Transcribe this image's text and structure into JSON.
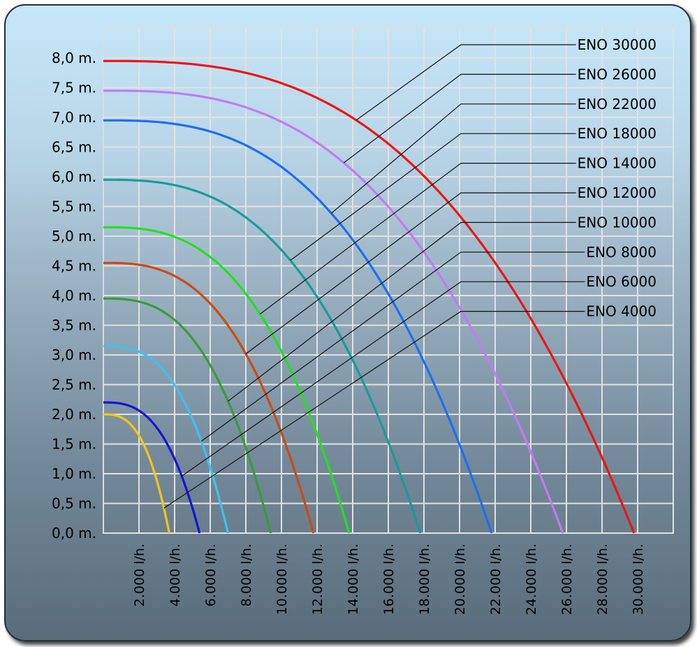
{
  "chart_data": {
    "type": "line",
    "title": "",
    "xlabel": "",
    "ylabel": "",
    "xlim": [
      0,
      31000
    ],
    "ylim": [
      0,
      8.5
    ],
    "grid": true,
    "x_ticks": [
      2000,
      4000,
      6000,
      8000,
      10000,
      12000,
      14000,
      16000,
      18000,
      20000,
      22000,
      24000,
      26000,
      28000,
      30000
    ],
    "x_tick_labels": [
      "2.000 l/h.",
      "4.000 l/h.",
      "6.000 l/h.",
      "8.000 l/h.",
      "10.000 l/h.",
      "12.000 l/h.",
      "14.000 l/h.",
      "16.000 l/h.",
      "18.000 l/h.",
      "20.000 l/h.",
      "22.000 l/h.",
      "24.000 l/h.",
      "26.000 l/h.",
      "28.000 l/h.",
      "30.000 l/h."
    ],
    "y_ticks": [
      0,
      0.5,
      1.0,
      1.5,
      2.0,
      2.5,
      3.0,
      3.5,
      4.0,
      4.5,
      5.0,
      5.5,
      6.0,
      6.5,
      7.0,
      7.5,
      8.0
    ],
    "y_tick_labels": [
      "0,0 m.",
      "0,5 m.",
      "1,0 m.",
      "1,5 m.",
      "2,0 m.",
      "2,5 m.",
      "3,0 m.",
      "3,5 m.",
      "4,0 m.",
      "4,5 m.",
      "5,0 m.",
      "5,5 m.",
      "6,0 m.",
      "6,5 m.",
      "7,0 m.",
      "7,5 m.",
      "8,0 m."
    ],
    "legend_placement": "top-right",
    "series": [
      {
        "name": "ENO 4000",
        "color": "#f5c518",
        "max_flow": 3700,
        "max_head": 2.0,
        "exponent": 2.8,
        "label_at_x": 3400
      },
      {
        "name": "ENO 6000",
        "color": "#1414d2",
        "max_flow": 5400,
        "max_head": 2.2,
        "exponent": 2.8,
        "label_at_x": 4400
      },
      {
        "name": "ENO 8000",
        "color": "#40c0ee",
        "max_flow": 7000,
        "max_head": 3.15,
        "exponent": 2.8,
        "label_at_x": 5500
      },
      {
        "name": "ENO 10000",
        "color": "#3a9a3a",
        "max_flow": 9400,
        "max_head": 3.95,
        "exponent": 2.8,
        "label_at_x": 7000
      },
      {
        "name": "ENO 12000",
        "color": "#cc4a14",
        "max_flow": 11800,
        "max_head": 4.55,
        "exponent": 2.8,
        "label_at_x": 8000
      },
      {
        "name": "ENO 14000",
        "color": "#22e022",
        "max_flow": 13800,
        "max_head": 5.15,
        "exponent": 2.8,
        "label_at_x": 8800
      },
      {
        "name": "ENO 18000",
        "color": "#1a9a9a",
        "max_flow": 17800,
        "max_head": 5.95,
        "exponent": 2.8,
        "label_at_x": 10500
      },
      {
        "name": "ENO 22000",
        "color": "#1e6ef0",
        "max_flow": 21800,
        "max_head": 6.95,
        "exponent": 2.8,
        "label_at_x": 12800
      },
      {
        "name": "ENO 26000",
        "color": "#c07cf0",
        "max_flow": 25800,
        "max_head": 7.45,
        "exponent": 2.8,
        "label_at_x": 13500
      },
      {
        "name": "ENO 30000",
        "color": "#ee1414",
        "max_flow": 29800,
        "max_head": 7.95,
        "exponent": 2.8,
        "label_at_x": 14200
      }
    ],
    "legend_order": [
      "ENO 30000",
      "ENO 26000",
      "ENO 22000",
      "ENO 18000",
      "ENO 14000",
      "ENO 12000",
      "ENO 10000",
      "ENO 8000",
      "ENO 6000",
      "ENO 4000"
    ]
  }
}
